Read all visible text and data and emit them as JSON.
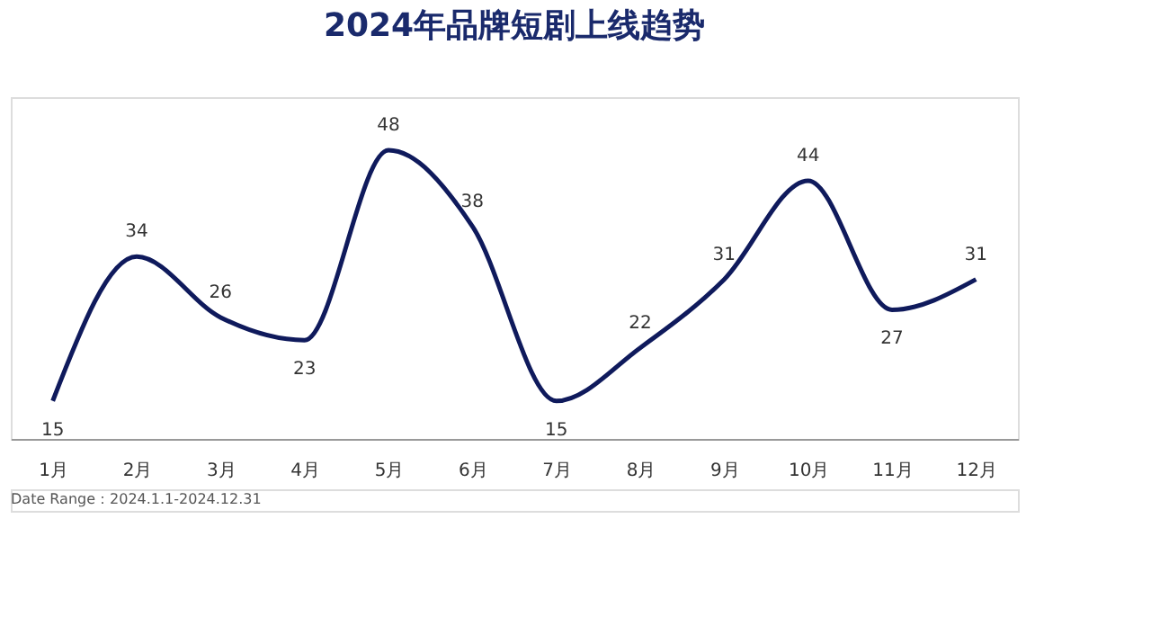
{
  "chart_data": {
    "type": "line",
    "title": "2024年品牌短剧上线趋势",
    "categories": [
      "1月",
      "2月",
      "3月",
      "4月",
      "5月",
      "6月",
      "7月",
      "8月",
      "9月",
      "10月",
      "11月",
      "12月"
    ],
    "series": [
      {
        "color": "#0f1a5c",
        "values": [
          15,
          34,
          26,
          23,
          48,
          38,
          15,
          22,
          31,
          44,
          27,
          31
        ]
      }
    ],
    "data_labels": true,
    "grid": false,
    "marker": "none",
    "line_style": "solid",
    "tick_labels": "x",
    "annotations": [
      "Date Range：2024.1.1-2024.12.31"
    ]
  }
}
